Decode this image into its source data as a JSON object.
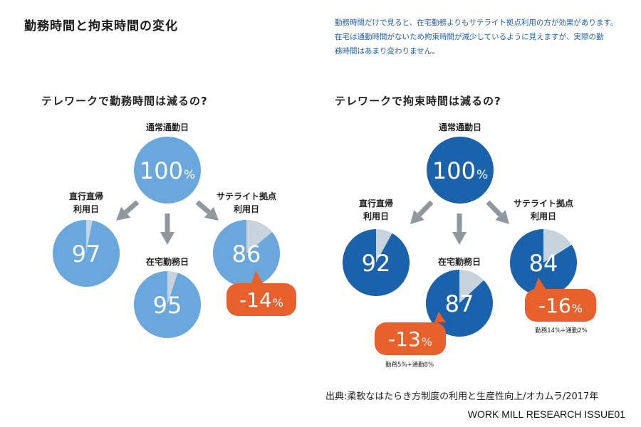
{
  "page_title": "勤務時間と拘束時間の変化",
  "note_lines": [
    "勤務時間だけで見ると、在宅勤務よりもサテライト拠点利用の方が効果があります。",
    "在宅は通勤時間がないため拘束時間が減少しているように見えますが、実際の勤",
    "務時間はあまり変わりません。"
  ],
  "colors": {
    "left_fill": "#6aa7dc",
    "right_fill": "#1b62ad",
    "remainder": "#c8d4dd",
    "arrow": "#8f989f",
    "callout": "#e8612c",
    "note_text": "#1f5fa8"
  },
  "chart_data": [
    {
      "type": "pie",
      "title": "テレワークで勤務時間は減るの?",
      "unit": "%",
      "base": {
        "label": "通常通勤日",
        "value": 100
      },
      "series": [
        {
          "label_lines": [
            "直行直帰",
            "利用日"
          ],
          "value": 97
        },
        {
          "label_lines": [
            "在宅勤務日"
          ],
          "value": 95
        },
        {
          "label_lines": [
            "サテライト拠点",
            "利用日"
          ],
          "value": 86
        }
      ],
      "callouts": [
        {
          "series_index": 2,
          "text": "-14",
          "unit": "%",
          "detail": ""
        }
      ]
    },
    {
      "type": "pie",
      "title": "テレワークで拘束時間は減るの?",
      "unit": "%",
      "base": {
        "label": "通常通勤日",
        "value": 100
      },
      "series": [
        {
          "label_lines": [
            "直行直帰",
            "利用日"
          ],
          "value": 92
        },
        {
          "label_lines": [
            "在宅勤務日"
          ],
          "value": 87
        },
        {
          "label_lines": [
            "サテライト拠点",
            "利用日"
          ],
          "value": 84
        }
      ],
      "callouts": [
        {
          "series_index": 1,
          "text": "-13",
          "unit": "%",
          "detail": "勤務5%+通勤8%"
        },
        {
          "series_index": 2,
          "text": "-16",
          "unit": "%",
          "detail": "勤務14%+通勤2%"
        }
      ]
    }
  ],
  "source": "出典:柔軟なはたらき方制度の利用と生産性向上/オカムラ/2017年",
  "credit": "WORK MILL RESEARCH ISSUE01"
}
